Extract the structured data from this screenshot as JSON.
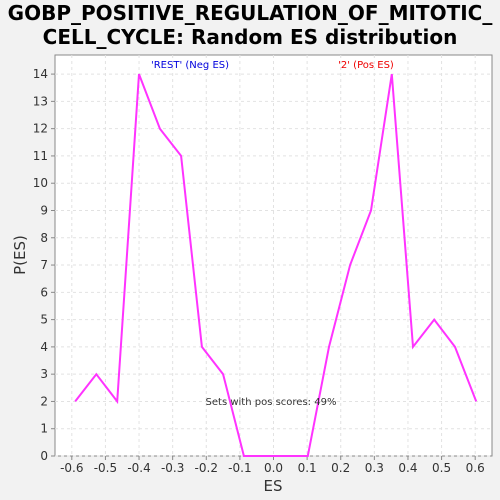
{
  "chart_data": {
    "type": "line",
    "title_lines": [
      "GOBP_POSITIVE_REGULATION_OF_MITOTIC_",
      "CELL_CYCLE: Random ES distribution"
    ],
    "xlabel": "ES",
    "ylabel": "P(ES)",
    "xlim": [
      -0.65,
      0.65
    ],
    "ylim": [
      0,
      14.7
    ],
    "x_ticks": [
      "-0.6",
      "-0.5",
      "-0.4",
      "-0.3",
      "-0.2",
      "-0.1",
      "0.0",
      "0.1",
      "0.2",
      "0.3",
      "0.4",
      "0.5",
      "0.6"
    ],
    "y_ticks": [
      "0",
      "1",
      "2",
      "3",
      "4",
      "5",
      "6",
      "7",
      "8",
      "9",
      "10",
      "11",
      "12",
      "13",
      "14"
    ],
    "grid": true,
    "line_color": "#ff33ff",
    "series": [
      {
        "x": [
          -0.59,
          -0.527,
          -0.465,
          -0.4,
          -0.338,
          -0.275,
          -0.213,
          -0.15,
          -0.088,
          -0.025,
          0.04,
          0.102,
          0.165,
          0.228,
          0.29,
          0.352,
          0.415,
          0.478,
          0.54,
          0.603
        ],
        "y": [
          2,
          3,
          2,
          14,
          12,
          11,
          4,
          3,
          0,
          0,
          0,
          0,
          4,
          7,
          9,
          14,
          4,
          5,
          4,
          2
        ]
      }
    ],
    "annotations": {
      "neg_label": "'REST' (Neg ES)",
      "neg_color": "#0000dd",
      "pos_label": "'2' (Pos ES)",
      "pos_color": "#ee0000",
      "pos_scores": "Sets with pos scores: 49%"
    }
  }
}
